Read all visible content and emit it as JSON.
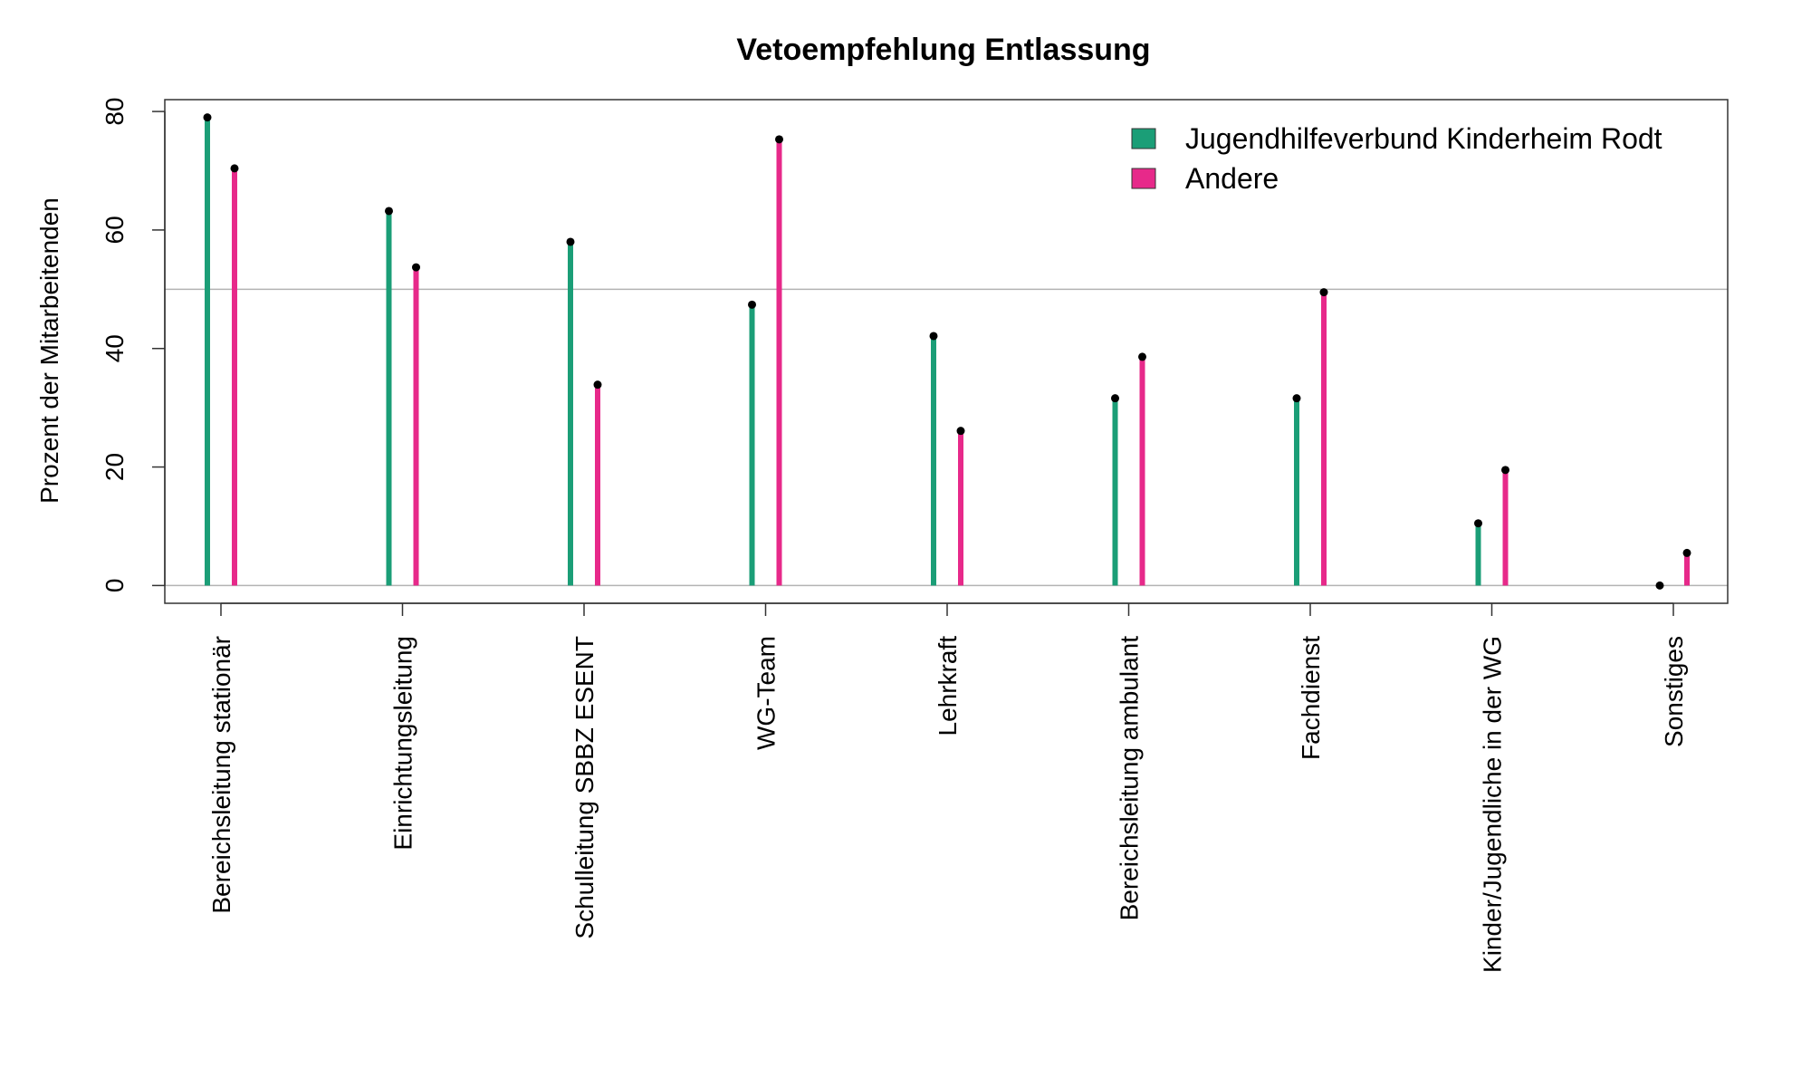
{
  "chart_data": {
    "type": "lollipop",
    "title": "Vetoempfehlung Entlassung",
    "ylabel": "Prozent der Mitarbeitenden",
    "xlabel": "",
    "ylim": [
      -3,
      82
    ],
    "yticks": [
      0,
      20,
      40,
      60,
      80
    ],
    "reference_lines": [
      0,
      50
    ],
    "legend_position": "top-right",
    "categories": [
      "Bereichsleitung stationär",
      "Einrichtungsleitung",
      "Schulleitung SBBZ ESENT",
      "WG-Team",
      "Lehrkraft",
      "Bereichsleitung ambulant",
      "Fachdienst",
      "Kinder/Jugendliche in der WG",
      "Sonstiges"
    ],
    "series": [
      {
        "name": "Jugendhilfeverbund Kinderheim Rodt",
        "color": "#1b9e77",
        "values": [
          79,
          63.2,
          58,
          47.4,
          42.1,
          31.6,
          31.6,
          10.5,
          0
        ]
      },
      {
        "name": "Andere",
        "color": "#e7298a",
        "values": [
          70.4,
          53.7,
          33.9,
          75.3,
          26.1,
          38.6,
          49.5,
          19.5,
          5.5
        ]
      }
    ]
  }
}
